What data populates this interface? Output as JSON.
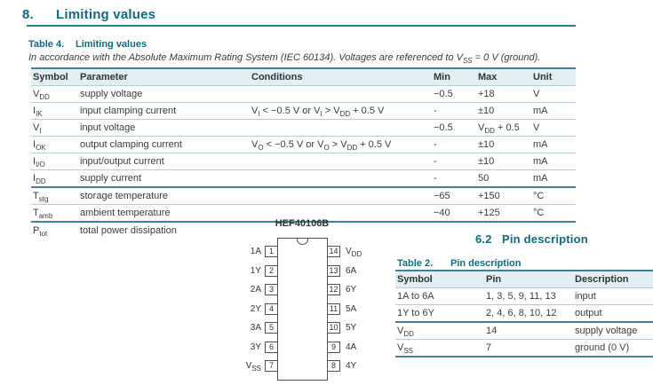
{
  "colors": {
    "accent": "#0d6b80",
    "rule_heavy": "#44808f",
    "rule_light": "#b0d1da",
    "table_header_bg": "#e2eff4"
  },
  "section_heading": {
    "number": "8.",
    "title": "Limiting values"
  },
  "limiting_table": {
    "caption_label": "Table 4.",
    "caption_title": "Limiting values",
    "note": [
      "In accordance with the Absolute Maximum Rating System (IEC 60134). Voltages are referenced to V",
      {
        "sub": "SS"
      },
      " = 0 V (ground)."
    ],
    "columns": [
      "Symbol",
      "Parameter",
      "Conditions",
      "Min",
      "Max",
      "Unit"
    ],
    "rows": [
      {
        "cells": [
          [
            "V",
            {
              "sub": "DD"
            }
          ],
          [
            "supply voltage"
          ],
          [],
          [
            "−0.5"
          ],
          [
            "+18"
          ],
          [
            "V"
          ]
        ],
        "divider": "light"
      },
      {
        "cells": [
          [
            "I",
            {
              "sub": "IK"
            }
          ],
          [
            "input clamping current"
          ],
          [
            "V",
            {
              "sub": "I"
            },
            " < −0.5 V or V",
            {
              "sub": "I"
            },
            " > V",
            {
              "sub": "DD"
            },
            " + 0.5 V"
          ],
          [
            "-"
          ],
          [
            "±10"
          ],
          [
            "mA"
          ]
        ],
        "divider": "light"
      },
      {
        "cells": [
          [
            "V",
            {
              "sub": "I"
            }
          ],
          [
            "input voltage"
          ],
          [],
          [
            "−0.5"
          ],
          [
            "V",
            {
              "sub": "DD"
            },
            " + 0.5"
          ],
          [
            "V"
          ]
        ],
        "divider": "light"
      },
      {
        "cells": [
          [
            "I",
            {
              "sub": "OK"
            }
          ],
          [
            "output clamping current"
          ],
          [
            "V",
            {
              "sub": "O"
            },
            " < −0.5 V or V",
            {
              "sub": "O"
            },
            " > V",
            {
              "sub": "DD"
            },
            " + 0.5 V"
          ],
          [
            "-"
          ],
          [
            "±10"
          ],
          [
            "mA"
          ]
        ],
        "divider": "light"
      },
      {
        "cells": [
          [
            "I",
            {
              "sub": "I/O"
            }
          ],
          [
            "input/output current"
          ],
          [],
          [
            "-"
          ],
          [
            "±10"
          ],
          [
            "mA"
          ]
        ],
        "divider": "light"
      },
      {
        "cells": [
          [
            "I",
            {
              "sub": "DD"
            }
          ],
          [
            "supply current"
          ],
          [],
          [
            "-"
          ],
          [
            "50"
          ],
          [
            "mA"
          ]
        ],
        "divider": "heavy"
      },
      {
        "cells": [
          [
            "T",
            {
              "sub": "stg"
            }
          ],
          [
            "storage temperature"
          ],
          [],
          [
            "−65"
          ],
          [
            "+150"
          ],
          [
            "°C"
          ]
        ],
        "divider": "light"
      },
      {
        "cells": [
          [
            "T",
            {
              "sub": "amb"
            }
          ],
          [
            "ambient temperature"
          ],
          [],
          [
            "−40"
          ],
          [
            "+125"
          ],
          [
            "°C"
          ]
        ],
        "divider": "heavy"
      },
      {
        "cells": [
          [
            "P",
            {
              "sub": "tot"
            }
          ],
          [
            "total power dissipation"
          ],
          [],
          [],
          [],
          []
        ],
        "divider": "none"
      }
    ]
  },
  "pin_diagram": {
    "title": "HEF40106B",
    "left_pins": [
      {
        "label": [
          "1A"
        ],
        "num": "1"
      },
      {
        "label": [
          "1Y"
        ],
        "num": "2"
      },
      {
        "label": [
          "2A"
        ],
        "num": "3"
      },
      {
        "label": [
          "2Y"
        ],
        "num": "4"
      },
      {
        "label": [
          "3A"
        ],
        "num": "5"
      },
      {
        "label": [
          "3Y"
        ],
        "num": "6"
      },
      {
        "label": [
          "V",
          {
            "sub": "SS"
          }
        ],
        "num": "7"
      }
    ],
    "right_pins": [
      {
        "label": [
          "V",
          {
            "sub": "DD"
          }
        ],
        "num": "14"
      },
      {
        "label": [
          "6A"
        ],
        "num": "13"
      },
      {
        "label": [
          "6Y"
        ],
        "num": "12"
      },
      {
        "label": [
          "5A"
        ],
        "num": "11"
      },
      {
        "label": [
          "5Y"
        ],
        "num": "10"
      },
      {
        "label": [
          "4A"
        ],
        "num": "9"
      },
      {
        "label": [
          "4Y"
        ],
        "num": "8"
      }
    ]
  },
  "subsection_heading": {
    "number": "6.2",
    "title": "Pin description"
  },
  "pin_table": {
    "caption_label": "Table 2.",
    "caption_title": "Pin description",
    "columns": [
      "Symbol",
      "Pin",
      "Description"
    ],
    "rows": [
      {
        "cells": [
          [
            "1A to 6A"
          ],
          [
            "1, 3, 5, 9, 11, 13"
          ],
          [
            "input"
          ]
        ],
        "divider": "light"
      },
      {
        "cells": [
          [
            "1Y to 6Y"
          ],
          [
            "2, 4, 6, 8, 10, 12"
          ],
          [
            "output"
          ]
        ],
        "divider": "heavy"
      },
      {
        "cells": [
          [
            "V",
            {
              "sub": "DD"
            }
          ],
          [
            "14"
          ],
          [
            "supply voltage"
          ]
        ],
        "divider": "light"
      },
      {
        "cells": [
          [
            "V",
            {
              "sub": "SS"
            }
          ],
          [
            "7"
          ],
          [
            "ground (0 V)"
          ]
        ],
        "divider": "heavy"
      }
    ]
  }
}
